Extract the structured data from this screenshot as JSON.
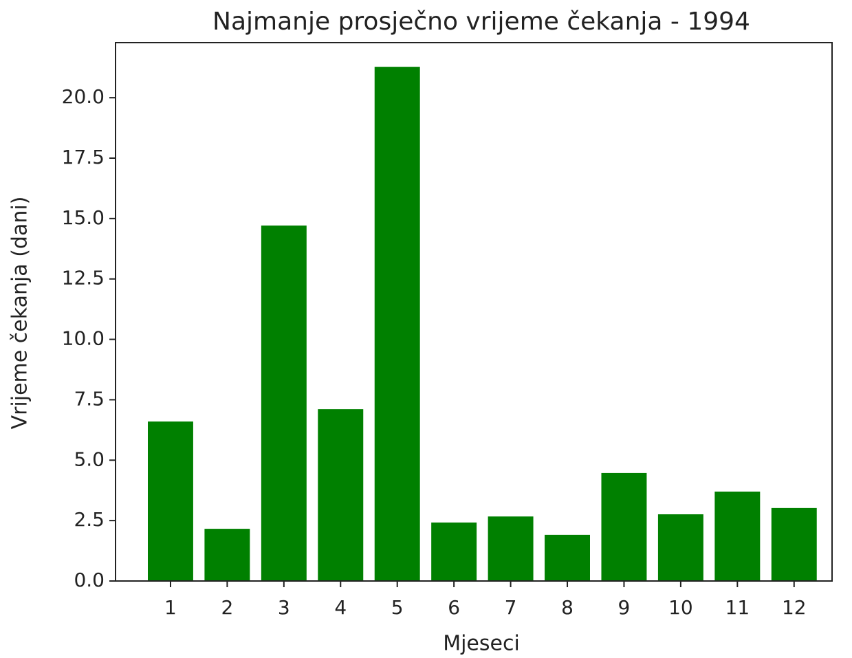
{
  "chart_data": {
    "type": "bar",
    "title": "Najmanje prosječno vrijeme čekanja - 1994",
    "xlabel": "Mjeseci",
    "ylabel": "Vrijeme čekanja (dani)",
    "x": [
      1,
      2,
      3,
      4,
      5,
      6,
      7,
      8,
      9,
      10,
      11,
      12
    ],
    "values": [
      6.6,
      2.16,
      14.71,
      7.11,
      21.28,
      2.42,
      2.67,
      1.91,
      4.47,
      2.76,
      3.7,
      3.02
    ],
    "color": "#008000",
    "xlim": [
      0.03,
      12.67
    ],
    "xticks": [
      1,
      2,
      3,
      4,
      5,
      6,
      7,
      8,
      9,
      10,
      11,
      12
    ],
    "ylim": [
      0,
      22.28
    ],
    "yticks": [
      {
        "value": 0,
        "label": "0.0"
      },
      {
        "value": 2.5,
        "label": "2.5"
      },
      {
        "value": 5,
        "label": "5.0"
      },
      {
        "value": 7.5,
        "label": "7.5"
      },
      {
        "value": 10,
        "label": "10.0"
      },
      {
        "value": 12.5,
        "label": "12.5"
      },
      {
        "value": 15,
        "label": "15.0"
      },
      {
        "value": 17.5,
        "label": "17.5"
      },
      {
        "value": 20,
        "label": "20.0"
      }
    ],
    "grid": false
  }
}
